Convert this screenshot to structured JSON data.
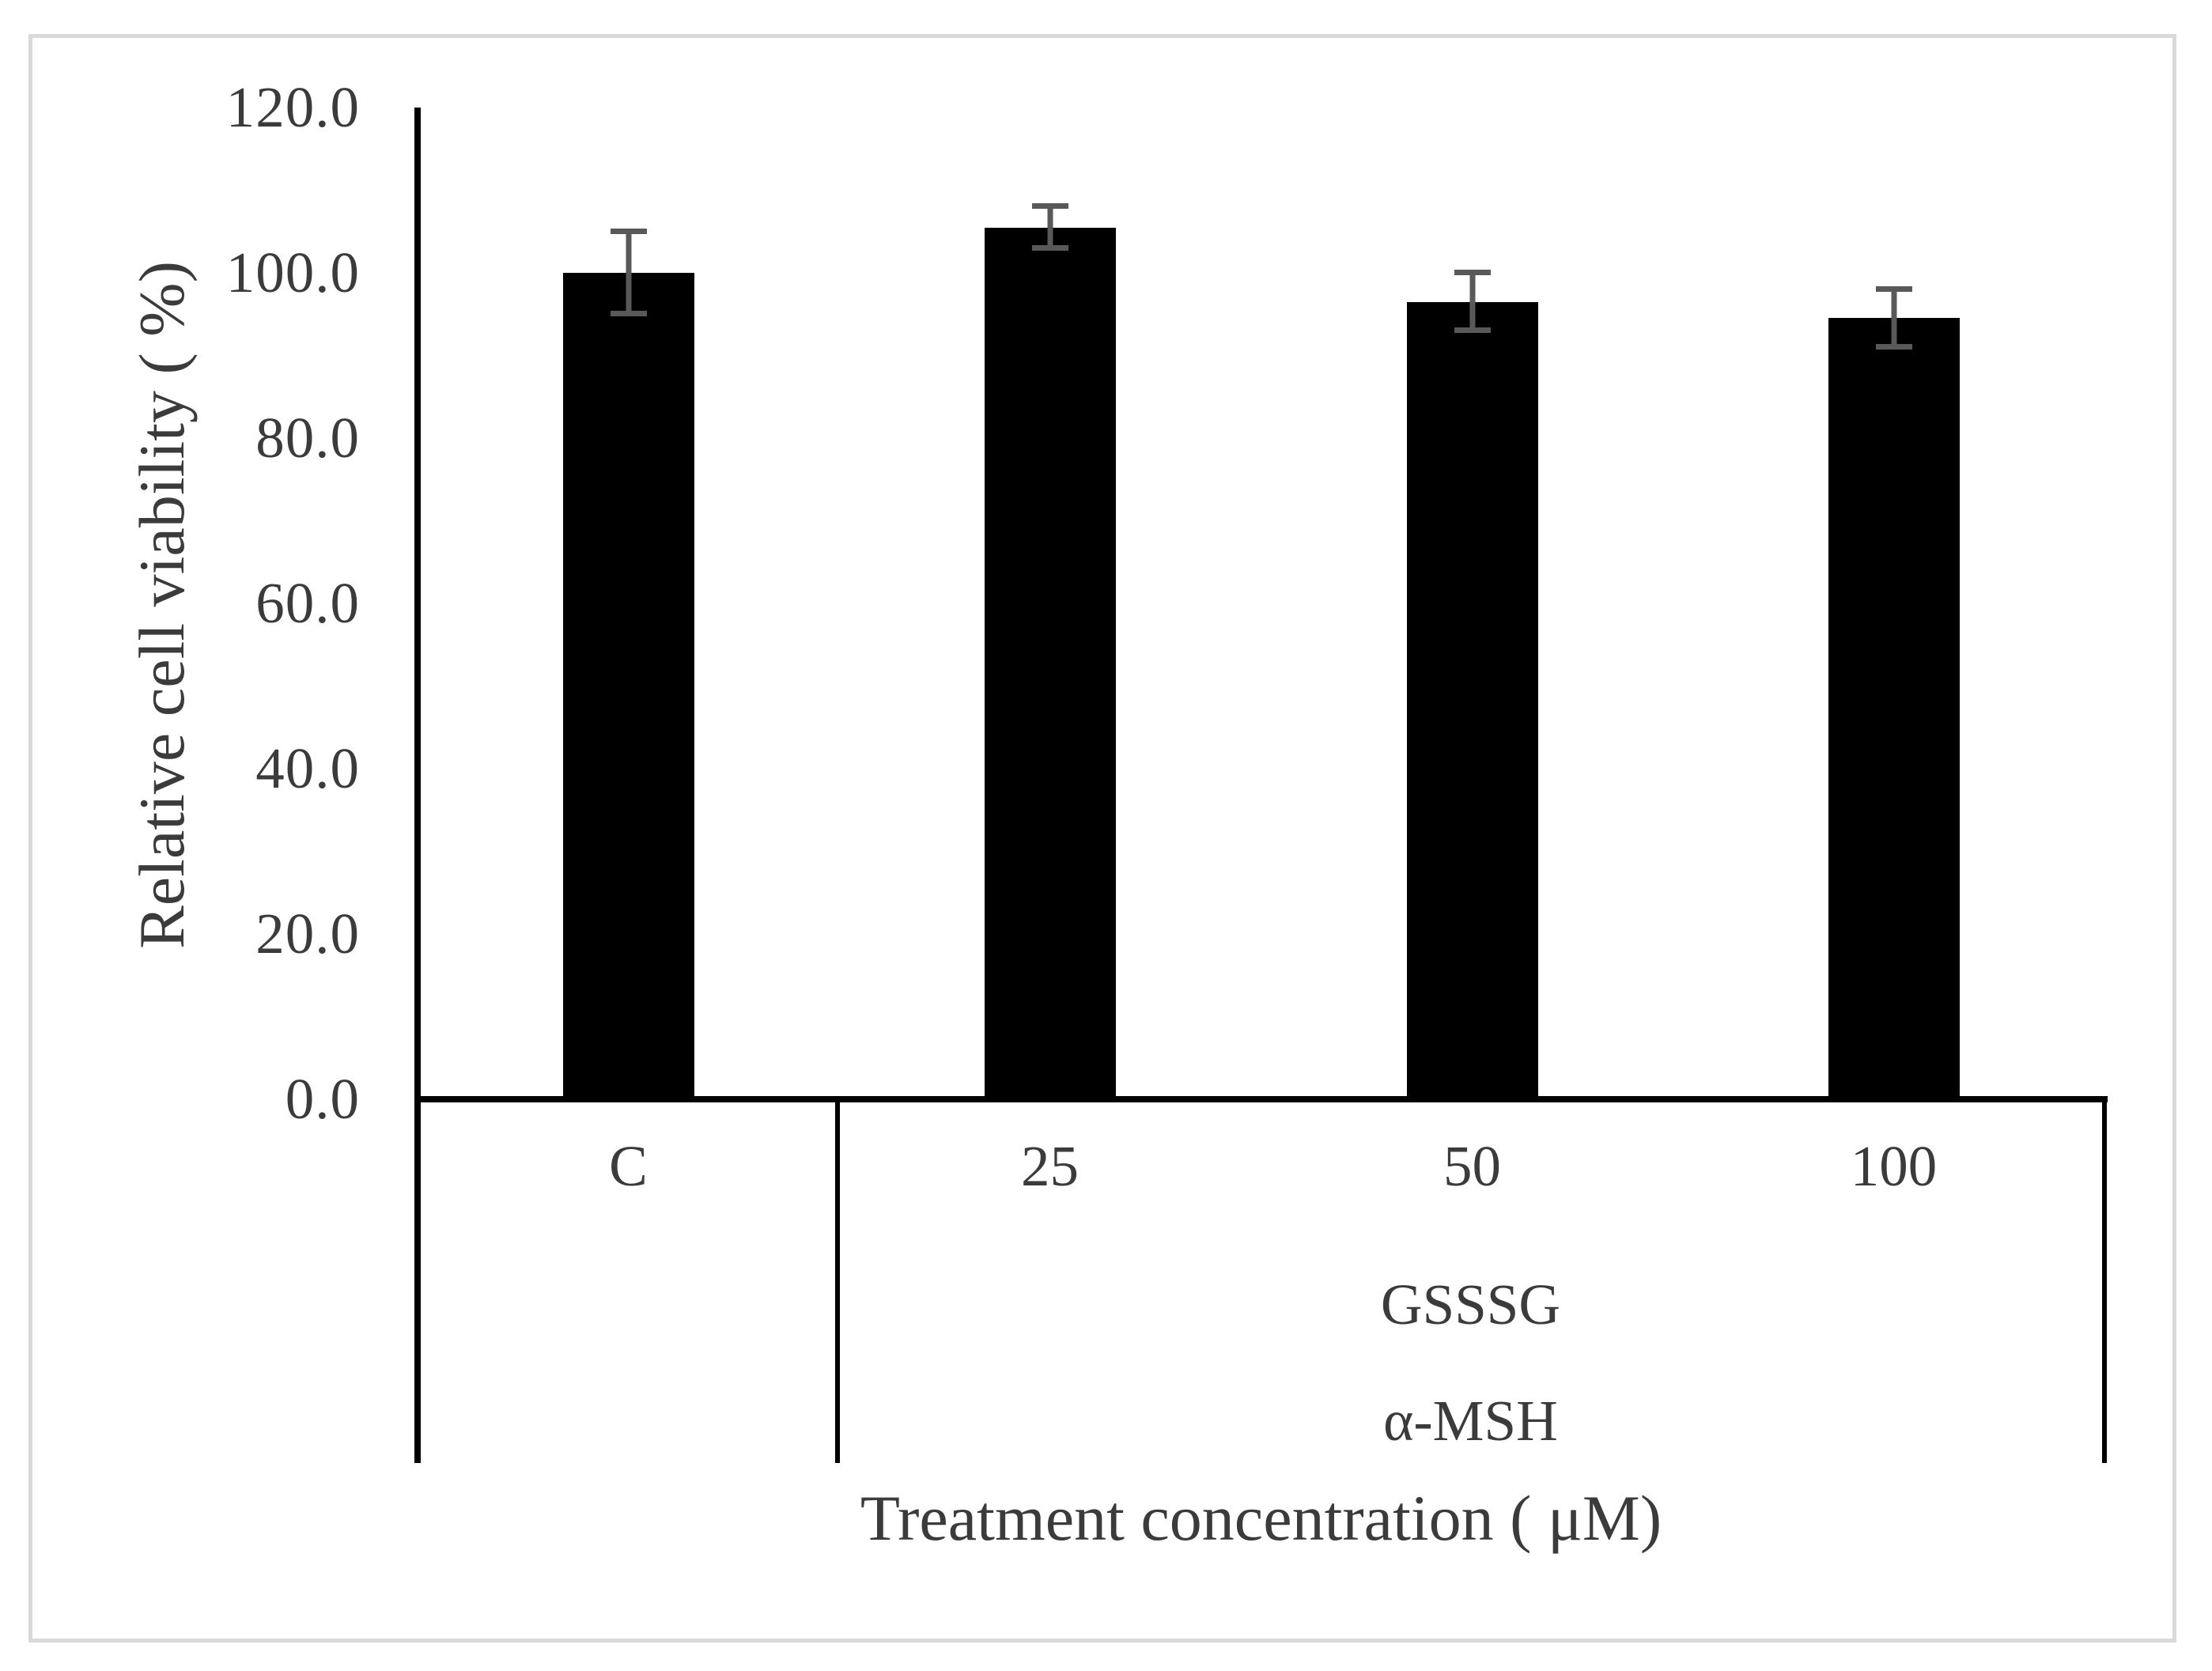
{
  "figure": {
    "kind": "scientific bar chart",
    "frame_color": "#d9d9d9",
    "background_color": "#ffffff",
    "text_color": "#3b3b3b"
  },
  "chart_data": {
    "type": "bar",
    "title": "",
    "categories": [
      "C",
      "25",
      "50",
      "100"
    ],
    "values": [
      100.0,
      105.5,
      96.5,
      94.5
    ],
    "errors": [
      5.0,
      2.5,
      3.5,
      3.5
    ],
    "series": [
      {
        "name": "Relative cell viability",
        "values": [
          100.0,
          105.5,
          96.5,
          94.5
        ],
        "errors": [
          5.0,
          2.5,
          3.5,
          3.5
        ]
      }
    ],
    "xlabel": "Treatment concentration ( μM)",
    "ylabel": "Relative cell viability ( %)",
    "group_labels": [
      "GSSSG",
      "α-MSH"
    ],
    "group_span_categories": [
      "25",
      "50",
      "100"
    ],
    "ylim": [
      0,
      120
    ],
    "ytick_interval": 20,
    "ytick_labels": [
      "120.0",
      "100.0",
      "80.0",
      "60.0",
      "40.0",
      "20.0",
      "0.0"
    ],
    "grid": false,
    "legend": false,
    "bar_color": "#000000",
    "error_bar_color": "#595959",
    "axis_color": "#000000"
  }
}
